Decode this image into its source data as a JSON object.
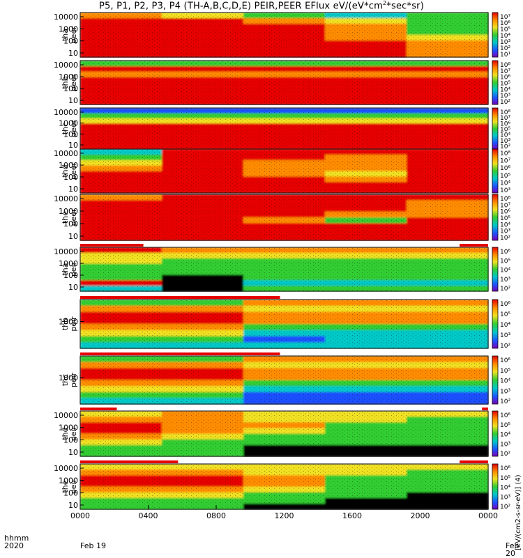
{
  "title": {
    "main": "P5, P1, P2, P3, P4 (TH-A,B,C,D,E) PEIR,PEER EFlux eV/(eV*cm",
    "sup": "2",
    "tail": "*sec*sr)"
  },
  "footer": {
    "hhmm": "hhmm",
    "year": "2020",
    "date_start": "Feb 19",
    "date_end": "Feb 20"
  },
  "colorbar_label": "[eV/(cm2-s-sr-eV)] (4)",
  "colors": {
    "red": "#e60000",
    "orange": "#ff8c00",
    "yellow": "#f0e020",
    "green": "#32cd32",
    "cyan": "#00c8c8",
    "blue": "#1e50ff",
    "purple": "#7a00b4",
    "black": "#000000"
  },
  "chart_data": {
    "type": "heatmap",
    "x_range": [
      "0000",
      "0000"
    ],
    "xticks": [
      "0000",
      "0400",
      "0800",
      "1200",
      "1600",
      "2000",
      "0000"
    ],
    "panels": [
      {
        "id": "tha_peer",
        "probe": "tha",
        "species": "peer",
        "yticks": [
          "10000",
          "1000",
          "100",
          "10"
        ],
        "cb_ticks": [
          "10⁷",
          "10⁶",
          "10⁵",
          "10⁴",
          "10³",
          "10²",
          "10¹"
        ],
        "profile": [
          [
            "orange",
            "yellow",
            "green",
            "cyan",
            "green"
          ],
          [
            "red",
            "red",
            "orange",
            "yellow",
            "green"
          ],
          [
            "red",
            "red",
            "red",
            "orange",
            "green"
          ],
          [
            "red",
            "red",
            "red",
            "orange",
            "green"
          ],
          [
            "red",
            "red",
            "red",
            "orange",
            "yellow"
          ],
          [
            "red",
            "red",
            "red",
            "red",
            "orange"
          ],
          [
            "red",
            "red",
            "red",
            "red",
            "orange"
          ],
          [
            "red",
            "red",
            "red",
            "red",
            "orange"
          ]
        ]
      },
      {
        "id": "thb_peer",
        "probe": "thb",
        "species": "peer",
        "yticks": [
          "10000",
          "1000",
          "100",
          "10"
        ],
        "cb_ticks": [
          "10⁸",
          "10⁷",
          "10⁶",
          "10⁵",
          "10⁴",
          "10³",
          "10²"
        ],
        "profile": [
          [
            "green",
            "green",
            "green",
            "green",
            "green"
          ],
          [
            "red",
            "red",
            "red",
            "red",
            "red"
          ],
          [
            "orange",
            "orange",
            "orange",
            "orange",
            "orange"
          ],
          [
            "red",
            "red",
            "red",
            "red",
            "red"
          ],
          [
            "red",
            "red",
            "red",
            "red",
            "red"
          ],
          [
            "red",
            "red",
            "red",
            "red",
            "red"
          ],
          [
            "red",
            "red",
            "red",
            "red",
            "red"
          ],
          [
            "red",
            "red",
            "red",
            "red",
            "red"
          ]
        ]
      },
      {
        "id": "thc_peer",
        "probe": "thc",
        "species": "peer",
        "yticks": [
          "10000",
          "1000",
          "100",
          "10"
        ],
        "cb_ticks": [
          "10⁸",
          "10⁷",
          "10⁶",
          "10⁵",
          "10⁴",
          "10³",
          "10²"
        ],
        "profile": [
          [
            "blue",
            "blue",
            "blue",
            "blue",
            "blue"
          ],
          [
            "green",
            "green",
            "green",
            "green",
            "green"
          ],
          [
            "yellow",
            "yellow",
            "yellow",
            "yellow",
            "yellow"
          ],
          [
            "red",
            "red",
            "red",
            "red",
            "red"
          ],
          [
            "red",
            "red",
            "red",
            "red",
            "red"
          ],
          [
            "red",
            "red",
            "red",
            "red",
            "red"
          ],
          [
            "red",
            "red",
            "red",
            "red",
            "red"
          ],
          [
            "red",
            "red",
            "red",
            "red",
            "red"
          ]
        ]
      },
      {
        "id": "thd_peer",
        "probe": "thd",
        "species": "peer",
        "yticks": [
          "10000",
          "1000",
          "100",
          "10"
        ],
        "cb_ticks": [
          "10⁸",
          "10⁷",
          "10⁶",
          "10⁵",
          "10⁴",
          "10³"
        ],
        "profile": [
          [
            "cyan",
            "red",
            "red",
            "red",
            "red"
          ],
          [
            "green",
            "red",
            "red",
            "orange",
            "red"
          ],
          [
            "yellow",
            "red",
            "orange",
            "orange",
            "red"
          ],
          [
            "orange",
            "red",
            "orange",
            "orange",
            "red"
          ],
          [
            "red",
            "red",
            "orange",
            "yellow",
            "red"
          ],
          [
            "red",
            "red",
            "red",
            "orange",
            "red"
          ],
          [
            "red",
            "red",
            "red",
            "red",
            "red"
          ],
          [
            "red",
            "red",
            "red",
            "red",
            "red"
          ]
        ]
      },
      {
        "id": "the_peer",
        "probe": "the",
        "species": "peer",
        "yticks": [
          "10000",
          "1000",
          "100",
          "10"
        ],
        "cb_ticks": [
          "10⁸",
          "10⁷",
          "10⁶",
          "10⁵",
          "10⁴",
          "10³",
          "10²"
        ],
        "profile": [
          [
            "orange",
            "red",
            "red",
            "red",
            "red"
          ],
          [
            "red",
            "red",
            "red",
            "red",
            "orange"
          ],
          [
            "red",
            "red",
            "red",
            "red",
            "orange"
          ],
          [
            "red",
            "red",
            "red",
            "orange",
            "orange"
          ],
          [
            "red",
            "red",
            "orange",
            "green",
            "red"
          ],
          [
            "red",
            "red",
            "red",
            "red",
            "red"
          ],
          [
            "red",
            "red",
            "red",
            "red",
            "red"
          ],
          [
            "red",
            "red",
            "red",
            "red",
            "red"
          ]
        ]
      },
      {
        "id": "tha_peir",
        "probe": "tha",
        "species": "peir",
        "yticks": [
          "10000",
          "1000",
          "100",
          "10"
        ],
        "cb_ticks": [
          "10⁶",
          "10⁵",
          "10⁴",
          "10³",
          "10²"
        ],
        "profile": [
          [
            "red",
            "orange",
            "orange",
            "orange",
            "orange"
          ],
          [
            "yellow",
            "yellow",
            "yellow",
            "yellow",
            "yellow"
          ],
          [
            "yellow",
            "green",
            "green",
            "green",
            "green"
          ],
          [
            "green",
            "green",
            "green",
            "green",
            "green"
          ],
          [
            "green",
            "green",
            "green",
            "green",
            "green"
          ],
          [
            "green",
            "black",
            "green",
            "green",
            "green"
          ],
          [
            "red",
            "black",
            "cyan",
            "cyan",
            "cyan"
          ],
          [
            "cyan",
            "black",
            "green",
            "green",
            "green"
          ]
        ]
      },
      {
        "id": "thb_peir",
        "probe": "thb",
        "species": "peir",
        "yticks": [
          "1000"
        ],
        "cb_ticks": [
          "10⁶",
          "10⁵",
          "10⁴",
          "10³",
          "10²"
        ],
        "profile": [
          [
            "green",
            "green",
            "orange",
            "orange",
            "orange"
          ],
          [
            "orange",
            "orange",
            "yellow",
            "yellow",
            "yellow"
          ],
          [
            "red",
            "red",
            "orange",
            "orange",
            "orange"
          ],
          [
            "red",
            "red",
            "orange",
            "orange",
            "orange"
          ],
          [
            "orange",
            "orange",
            "green",
            "green",
            "green"
          ],
          [
            "yellow",
            "yellow",
            "cyan",
            "cyan",
            "cyan"
          ],
          [
            "green",
            "green",
            "blue",
            "cyan",
            "cyan"
          ],
          [
            "cyan",
            "cyan",
            "cyan",
            "cyan",
            "cyan"
          ]
        ]
      },
      {
        "id": "thc_peir",
        "probe": "thc",
        "species": "peir",
        "yticks": [
          "1000"
        ],
        "cb_ticks": [
          "10⁶",
          "10⁵",
          "10⁴",
          "10³",
          "10²"
        ],
        "profile": [
          [
            "green",
            "green",
            "orange",
            "orange",
            "orange"
          ],
          [
            "orange",
            "orange",
            "yellow",
            "yellow",
            "yellow"
          ],
          [
            "red",
            "red",
            "orange",
            "orange",
            "orange"
          ],
          [
            "red",
            "red",
            "orange",
            "orange",
            "orange"
          ],
          [
            "orange",
            "orange",
            "green",
            "green",
            "green"
          ],
          [
            "yellow",
            "yellow",
            "cyan",
            "cyan",
            "cyan"
          ],
          [
            "green",
            "green",
            "blue",
            "blue",
            "blue"
          ],
          [
            "cyan",
            "cyan",
            "blue",
            "blue",
            "blue"
          ]
        ]
      },
      {
        "id": "thd_peir",
        "probe": "thd",
        "species": "peir",
        "yticks": [
          "10000",
          "1000",
          "100",
          "10"
        ],
        "cb_ticks": [
          "10⁶",
          "10⁵",
          "10⁴",
          "10³",
          "10²"
        ],
        "profile": [
          [
            "yellow",
            "orange",
            "yellow",
            "yellow",
            "yellow"
          ],
          [
            "orange",
            "orange",
            "yellow",
            "yellow",
            "green"
          ],
          [
            "red",
            "orange",
            "orange",
            "green",
            "green"
          ],
          [
            "red",
            "orange",
            "yellow",
            "green",
            "green"
          ],
          [
            "orange",
            "yellow",
            "green",
            "green",
            "green"
          ],
          [
            "yellow",
            "green",
            "green",
            "green",
            "green"
          ],
          [
            "green",
            "green",
            "black",
            "black",
            "black"
          ],
          [
            "green",
            "green",
            "black",
            "black",
            "black"
          ]
        ]
      },
      {
        "id": "the_peir",
        "probe": "the",
        "species": "peir",
        "yticks": [
          "10000",
          "1000",
          "100",
          "10"
        ],
        "cb_ticks": [
          "10⁶",
          "10⁵",
          "10⁴",
          "10³",
          "10²"
        ],
        "profile": [
          [
            "yellow",
            "yellow",
            "yellow",
            "yellow",
            "yellow"
          ],
          [
            "orange",
            "orange",
            "yellow",
            "yellow",
            "green"
          ],
          [
            "red",
            "red",
            "orange",
            "green",
            "green"
          ],
          [
            "red",
            "red",
            "orange",
            "green",
            "green"
          ],
          [
            "orange",
            "orange",
            "yellow",
            "green",
            "green"
          ],
          [
            "yellow",
            "yellow",
            "green",
            "green",
            "black"
          ],
          [
            "green",
            "green",
            "green",
            "black",
            "black"
          ],
          [
            "green",
            "green",
            "black",
            "black",
            "black"
          ]
        ]
      }
    ]
  }
}
